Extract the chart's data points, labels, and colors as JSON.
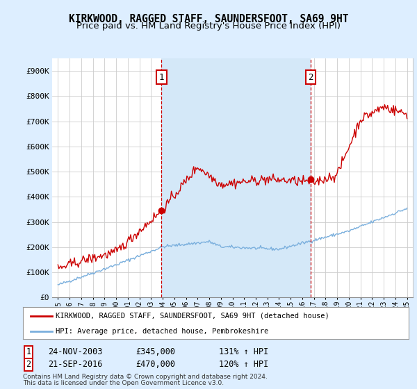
{
  "title": "KIRKWOOD, RAGGED STAFF, SAUNDERSFOOT, SA69 9HT",
  "subtitle": "Price paid vs. HM Land Registry's House Price Index (HPI)",
  "ylabel_ticks": [
    "£0",
    "£100K",
    "£200K",
    "£300K",
    "£400K",
    "£500K",
    "£600K",
    "£700K",
    "£800K",
    "£900K"
  ],
  "ytick_values": [
    0,
    100000,
    200000,
    300000,
    400000,
    500000,
    600000,
    700000,
    800000,
    900000
  ],
  "ylim": [
    0,
    950000
  ],
  "xlim": [
    1994.5,
    2025.5
  ],
  "sale1_x": 2003.9,
  "sale1_y": 345000,
  "sale2_x": 2016.72,
  "sale2_y": 470000,
  "legend_line1": "KIRKWOOD, RAGGED STAFF, SAUNDERSFOOT, SA69 9HT (detached house)",
  "legend_line2": "HPI: Average price, detached house, Pembrokeshire",
  "sale1_date": "24-NOV-2003",
  "sale1_price": "£345,000",
  "sale1_label": "131% ↑ HPI",
  "sale2_date": "21-SEP-2016",
  "sale2_price": "£470,000",
  "sale2_label": "120% ↑ HPI",
  "footnote1": "Contains HM Land Registry data © Crown copyright and database right 2024.",
  "footnote2": "This data is licensed under the Open Government Licence v3.0.",
  "red_color": "#cc0000",
  "blue_color": "#7aafdd",
  "shade_color": "#d4e8f8",
  "background_color": "#ddeeff",
  "plot_bg": "#ffffff",
  "grid_color": "#cccccc",
  "title_fontsize": 10.5,
  "subtitle_fontsize": 9.5
}
